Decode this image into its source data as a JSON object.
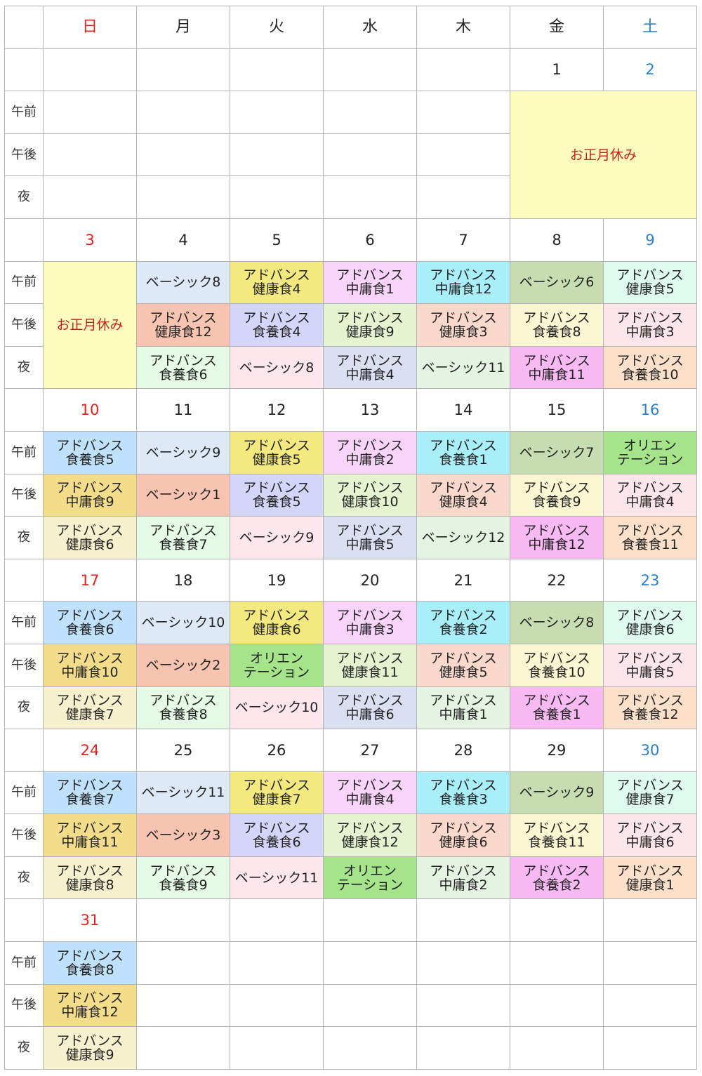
{
  "weekdays": [
    "日",
    "月",
    "火",
    "水",
    "木",
    "金",
    "土"
  ],
  "slot_labels": [
    "午前",
    "午後",
    "夜"
  ],
  "holiday_label": "お正月休み",
  "colors": {
    "sunday": "#e0241b",
    "saturday": "#2b7fc8",
    "holiday_bg": "#fdfbbe",
    "holiday_text": "#c0221c"
  },
  "weeks": [
    {
      "days": [
        "",
        "",
        "",
        "",
        "",
        "1",
        "2"
      ],
      "slots": [
        [
          {
            "t": ""
          },
          {
            "t": ""
          },
          {
            "t": ""
          },
          {
            "t": ""
          },
          {
            "t": ""
          },
          {
            "holiday": true,
            "rs": 3,
            "cs": 2
          }
        ],
        [
          {
            "t": ""
          },
          {
            "t": ""
          },
          {
            "t": ""
          },
          {
            "t": ""
          },
          {
            "t": ""
          }
        ],
        [
          {
            "t": ""
          },
          {
            "t": ""
          },
          {
            "t": ""
          },
          {
            "t": ""
          },
          {
            "t": ""
          }
        ]
      ]
    },
    {
      "days": [
        "3",
        "4",
        "5",
        "6",
        "7",
        "8",
        "9"
      ],
      "slots": [
        [
          {
            "holiday": true,
            "rs": 3
          },
          {
            "t": "ベーシック8",
            "c": "#dde9f7"
          },
          {
            "t": "アドバンス\n健康食4",
            "c": "#f3e97f"
          },
          {
            "t": "アドバンス\n中庸食1",
            "c": "#f8d3fa"
          },
          {
            "t": "アドバンス\n中庸食12",
            "c": "#a9eff9"
          },
          {
            "t": "ベーシック6",
            "c": "#c5ddb0"
          },
          {
            "t": "アドバンス\n健康食5",
            "c": "#dffbf0"
          }
        ],
        [
          {
            "t": "アドバンス\n健康食12",
            "c": "#f8c4b2"
          },
          {
            "t": "アドバンス\n食養食4",
            "c": "#d4d5f9"
          },
          {
            "t": "アドバンス\n健康食9",
            "c": "#e5f3d0"
          },
          {
            "t": "アドバンス\n健康食3",
            "c": "#fad9cc"
          },
          {
            "t": "アドバンス\n食養食8",
            "c": "#fbf7d2"
          },
          {
            "t": "アドバンス\n中庸食3",
            "c": "#fde6ea"
          }
        ],
        [
          {
            "t": "アドバンス\n食養食6",
            "c": "#e6fbe6"
          },
          {
            "t": "ベーシック8",
            "c": "#fde7ec"
          },
          {
            "t": "アドバンス\n中庸食4",
            "c": "#dcdff2"
          },
          {
            "t": "ベーシック11",
            "c": "#e5f4e2"
          },
          {
            "t": "アドバンス\n中庸食11",
            "c": "#f9baf4"
          },
          {
            "t": "アドバンス\n食養食10",
            "c": "#fde0c9"
          }
        ]
      ]
    },
    {
      "days": [
        "10",
        "11",
        "12",
        "13",
        "14",
        "15",
        "16"
      ],
      "slots": [
        [
          {
            "t": "アドバンス\n食養食5",
            "c": "#bfe1fb"
          },
          {
            "t": "ベーシック9",
            "c": "#dde9f7"
          },
          {
            "t": "アドバンス\n健康食5",
            "c": "#f3e97f"
          },
          {
            "t": "アドバンス\n中庸食2",
            "c": "#f8d3fa"
          },
          {
            "t": "アドバンス\n食養食1",
            "c": "#a9eff9"
          },
          {
            "t": "ベーシック7",
            "c": "#c5ddb0"
          },
          {
            "t": "オリエン\nテーション",
            "c": "#a5e48a"
          }
        ],
        [
          {
            "t": "アドバンス\n中庸食9",
            "c": "#f4dd8a"
          },
          {
            "t": "ベーシック1",
            "c": "#f8c4b2"
          },
          {
            "t": "アドバンス\n食養食5",
            "c": "#d4d5f9"
          },
          {
            "t": "アドバンス\n健康食10",
            "c": "#e5f3d0"
          },
          {
            "t": "アドバンス\n健康食4",
            "c": "#fad9cc"
          },
          {
            "t": "アドバンス\n食養食9",
            "c": "#fbf7d2"
          },
          {
            "t": "アドバンス\n中庸食4",
            "c": "#fde6ea"
          }
        ],
        [
          {
            "t": "アドバンス\n健康食6",
            "c": "#f5f1cf"
          },
          {
            "t": "アドバンス\n食養食7",
            "c": "#e6fbe6"
          },
          {
            "t": "ベーシック9",
            "c": "#fde7ec"
          },
          {
            "t": "アドバンス\n中庸食5",
            "c": "#dcdff2"
          },
          {
            "t": "ベーシック12",
            "c": "#e5f4e2"
          },
          {
            "t": "アドバンス\n中庸食12",
            "c": "#f9baf4"
          },
          {
            "t": "アドバンス\n食養食11",
            "c": "#fde0c9"
          }
        ]
      ]
    },
    {
      "days": [
        "17",
        "18",
        "19",
        "20",
        "21",
        "22",
        "23"
      ],
      "slots": [
        [
          {
            "t": "アドバンス\n食養食6",
            "c": "#bfe1fb"
          },
          {
            "t": "ベーシック10",
            "c": "#dde9f7"
          },
          {
            "t": "アドバンス\n健康食6",
            "c": "#f3e97f"
          },
          {
            "t": "アドバンス\n中庸食3",
            "c": "#f8d3fa"
          },
          {
            "t": "アドバンス\n食養食2",
            "c": "#a9eff9"
          },
          {
            "t": "ベーシック8",
            "c": "#c5ddb0"
          },
          {
            "t": "アドバンス\n健康食6",
            "c": "#dffbf0"
          }
        ],
        [
          {
            "t": "アドバンス\n中庸食10",
            "c": "#f4dd8a"
          },
          {
            "t": "ベーシック2",
            "c": "#f8c4b2"
          },
          {
            "t": "オリエン\nテーション",
            "c": "#a5e48a"
          },
          {
            "t": "アドバンス\n健康食11",
            "c": "#e5f3d0"
          },
          {
            "t": "アドバンス\n健康食5",
            "c": "#fad9cc"
          },
          {
            "t": "アドバンス\n食養食10",
            "c": "#fbf7d2"
          },
          {
            "t": "アドバンス\n中庸食5",
            "c": "#fde6ea"
          }
        ],
        [
          {
            "t": "アドバンス\n健康食7",
            "c": "#f5f1cf"
          },
          {
            "t": "アドバンス\n食養食8",
            "c": "#e6fbe6"
          },
          {
            "t": "ベーシック10",
            "c": "#fde7ec"
          },
          {
            "t": "アドバンス\n中庸食6",
            "c": "#dcdff2"
          },
          {
            "t": "アドバンス\n中庸食1",
            "c": "#e5f4e2"
          },
          {
            "t": "アドバンス\n食養食1",
            "c": "#f9baf4"
          },
          {
            "t": "アドバンス\n食養食12",
            "c": "#fde0c9"
          }
        ]
      ]
    },
    {
      "days": [
        "24",
        "25",
        "26",
        "27",
        "28",
        "29",
        "30"
      ],
      "slots": [
        [
          {
            "t": "アドバンス\n食養食7",
            "c": "#bfe1fb"
          },
          {
            "t": "ベーシック11",
            "c": "#dde9f7"
          },
          {
            "t": "アドバンス\n健康食7",
            "c": "#f3e97f"
          },
          {
            "t": "アドバンス\n中庸食4",
            "c": "#f8d3fa"
          },
          {
            "t": "アドバンス\n食養食3",
            "c": "#a9eff9"
          },
          {
            "t": "ベーシック9",
            "c": "#c5ddb0"
          },
          {
            "t": "アドバンス\n健康食7",
            "c": "#dffbf0"
          }
        ],
        [
          {
            "t": "アドバンス\n中庸食11",
            "c": "#f4dd8a"
          },
          {
            "t": "ベーシック3",
            "c": "#f8c4b2"
          },
          {
            "t": "アドバンス\n食養食6",
            "c": "#d4d5f9"
          },
          {
            "t": "アドバンス\n健康食12",
            "c": "#e5f3d0"
          },
          {
            "t": "アドバンス\n健康食6",
            "c": "#fad9cc"
          },
          {
            "t": "アドバンス\n食養食11",
            "c": "#fbf7d2"
          },
          {
            "t": "アドバンス\n中庸食6",
            "c": "#fde6ea"
          }
        ],
        [
          {
            "t": "アドバンス\n健康食8",
            "c": "#f5f1cf"
          },
          {
            "t": "アドバンス\n食養食9",
            "c": "#e6fbe6"
          },
          {
            "t": "ベーシック11",
            "c": "#fde7ec"
          },
          {
            "t": "オリエン\nテーション",
            "c": "#a5e48a"
          },
          {
            "t": "アドバンス\n中庸食2",
            "c": "#e5f4e2"
          },
          {
            "t": "アドバンス\n食養食2",
            "c": "#f9baf4"
          },
          {
            "t": "アドバンス\n健康食1",
            "c": "#fde0c9"
          }
        ]
      ]
    },
    {
      "days": [
        "31",
        "",
        "",
        "",
        "",
        "",
        ""
      ],
      "slots": [
        [
          {
            "t": "アドバンス\n食養食8",
            "c": "#bfe1fb"
          },
          {
            "t": ""
          },
          {
            "t": ""
          },
          {
            "t": ""
          },
          {
            "t": ""
          },
          {
            "t": ""
          },
          {
            "t": ""
          }
        ],
        [
          {
            "t": "アドバンス\n中庸食12",
            "c": "#f4dd8a"
          },
          {
            "t": ""
          },
          {
            "t": ""
          },
          {
            "t": ""
          },
          {
            "t": ""
          },
          {
            "t": ""
          },
          {
            "t": ""
          }
        ],
        [
          {
            "t": "アドバンス\n健康食9",
            "c": "#f5f1cf"
          },
          {
            "t": ""
          },
          {
            "t": ""
          },
          {
            "t": ""
          },
          {
            "t": ""
          },
          {
            "t": ""
          },
          {
            "t": ""
          }
        ]
      ]
    }
  ]
}
